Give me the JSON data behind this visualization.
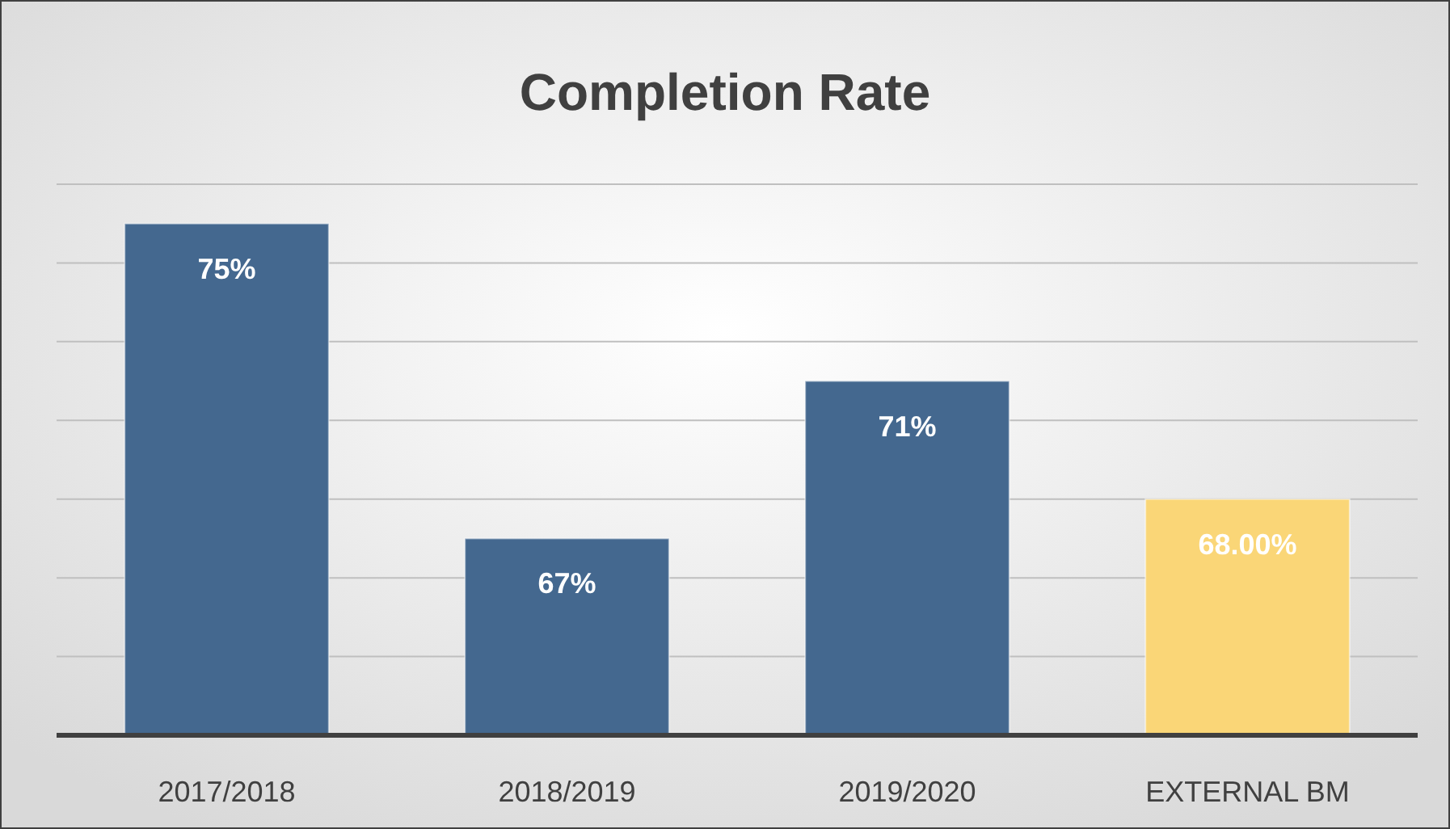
{
  "chart_data": {
    "type": "bar",
    "title": "Completion Rate",
    "categories": [
      "2017/2018",
      "2018/2019",
      "2019/2020",
      "EXTERNAL BM"
    ],
    "values": [
      75,
      67,
      71,
      68
    ],
    "colors": [
      "#44688f",
      "#44688f",
      "#44688f",
      "#fad677"
    ],
    "value_labels": [
      "75%",
      "67%",
      "71%",
      "68.00%"
    ],
    "ylim": [
      62,
      76
    ],
    "yticks": [
      {
        "value": 62,
        "label": null
      },
      {
        "value": 64,
        "label": null
      },
      {
        "value": 66,
        "label": null
      },
      {
        "value": 68,
        "label": null
      },
      {
        "value": 70,
        "label": null
      },
      {
        "value": 72,
        "label": null
      },
      {
        "value": 74,
        "label": null
      },
      {
        "value": 76,
        "label": null
      }
    ],
    "grid": "y",
    "tick_labels": "x"
  }
}
